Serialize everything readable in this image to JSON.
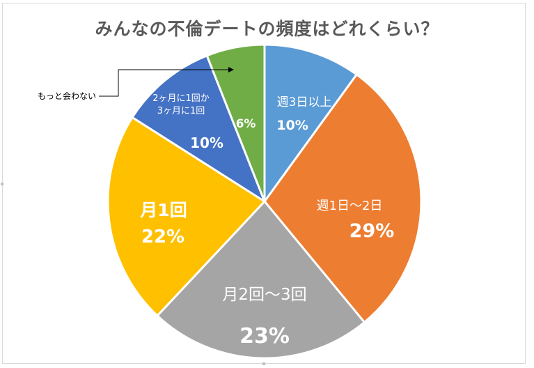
{
  "chart_data": {
    "type": "pie",
    "title": "みんなの不倫デートの頻度はどれくらい？",
    "slices": [
      {
        "name": "週3日以上",
        "value": 10,
        "label": "10%",
        "color": "#5b9bd5"
      },
      {
        "name": "週1日～2日",
        "value": 29,
        "label": "29%",
        "color": "#ed7d31"
      },
      {
        "name": "月2回～3回",
        "value": 23,
        "label": "23%",
        "color": "#a5a5a5"
      },
      {
        "name": "月1回",
        "value": 22,
        "label": "22%",
        "color": "#ffc000"
      },
      {
        "name": "2ヶ月に1回か3ヶ月に1回",
        "name_lines": [
          "2ヶ月に1回か",
          "3ヶ月に1回"
        ],
        "value": 10,
        "label": "10%",
        "color": "#4472c4"
      },
      {
        "name": "もっと会わない",
        "value": 6,
        "label": "6%",
        "color": "#70ad47"
      }
    ],
    "start_angle_deg": 0,
    "direction": "clockwise",
    "legend": "none"
  }
}
